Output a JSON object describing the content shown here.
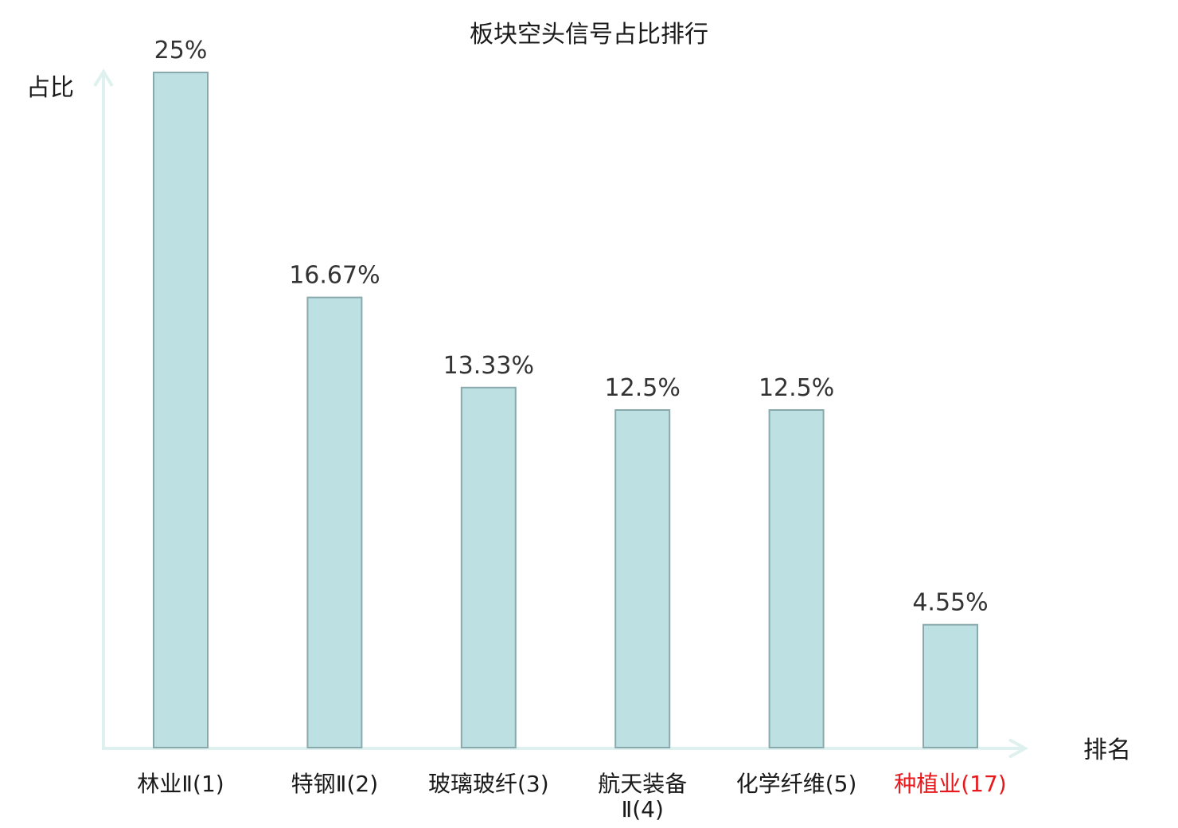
{
  "chart_data": {
    "type": "bar",
    "title": "板块空头信号占比排行",
    "ylabel": "占比",
    "xlabel": "排名",
    "categories": [
      [
        "林业Ⅱ(1)"
      ],
      [
        "特钢Ⅱ(2)"
      ],
      [
        "玻璃玻纤(3)"
      ],
      [
        "航天装备",
        "Ⅱ(4)"
      ],
      [
        "化学纤维(5)"
      ],
      [
        "种植业(17)"
      ]
    ],
    "values": [
      25,
      16.67,
      13.33,
      12.5,
      12.5,
      4.55
    ],
    "value_labels": [
      "25%",
      "16.67%",
      "13.33%",
      "12.5%",
      "12.5%",
      "4.55%"
    ],
    "highlight_index": 5,
    "ylim": [
      0,
      25
    ],
    "grid": false,
    "colors": {
      "bar_fill": "#bde0e3",
      "bar_stroke": "#8aa9ac",
      "axis": "#dff1ee",
      "highlight_text": "#e8191c",
      "text": "#1a1a1a"
    }
  }
}
